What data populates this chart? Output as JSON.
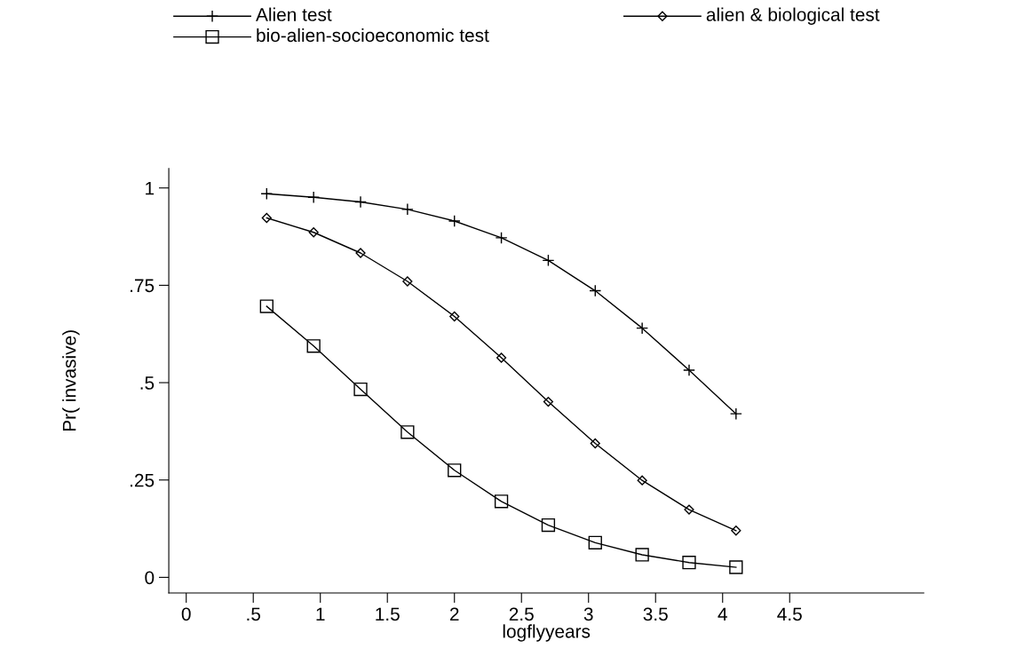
{
  "chart_data": {
    "type": "line",
    "xlabel": "logflyyears",
    "ylabel": "Pr( invasive)",
    "x": [
      0.6,
      0.95,
      1.3,
      1.65,
      2.0,
      2.35,
      2.7,
      3.05,
      3.4,
      3.75,
      4.1
    ],
    "series": [
      {
        "name": "Alien test",
        "color": "#000000",
        "marker": "cross",
        "values": [
          0.985,
          0.976,
          0.964,
          0.945,
          0.915,
          0.872,
          0.814,
          0.736,
          0.64,
          0.532,
          0.42
        ]
      },
      {
        "name": "alien & biological test",
        "color": "#000000",
        "marker": "diamond",
        "values": [
          0.923,
          0.886,
          0.833,
          0.76,
          0.67,
          0.564,
          0.451,
          0.344,
          0.249,
          0.174,
          0.12
        ]
      },
      {
        "name": "bio-alien-socioeconomic test",
        "color": "#000000",
        "marker": "square",
        "values": [
          0.696,
          0.594,
          0.483,
          0.373,
          0.275,
          0.195,
          0.134,
          0.089,
          0.058,
          0.038,
          0.026
        ]
      }
    ],
    "xlim": [
      -0.13,
      5.5
    ],
    "xticks": [
      0,
      {
        "value": 0.5,
        "label": ".5"
      },
      1,
      1.5,
      2,
      2.5,
      3,
      3.5,
      4,
      4.5
    ],
    "ylim": [
      -0.04,
      1.05
    ],
    "yticks": [
      0,
      {
        "value": 0.25,
        "label": ".25"
      },
      {
        "value": 0.5,
        "label": ".5"
      },
      {
        "value": 0.75,
        "label": ".75"
      },
      1
    ],
    "grid": false,
    "legend": "top",
    "line_style": "solid"
  }
}
